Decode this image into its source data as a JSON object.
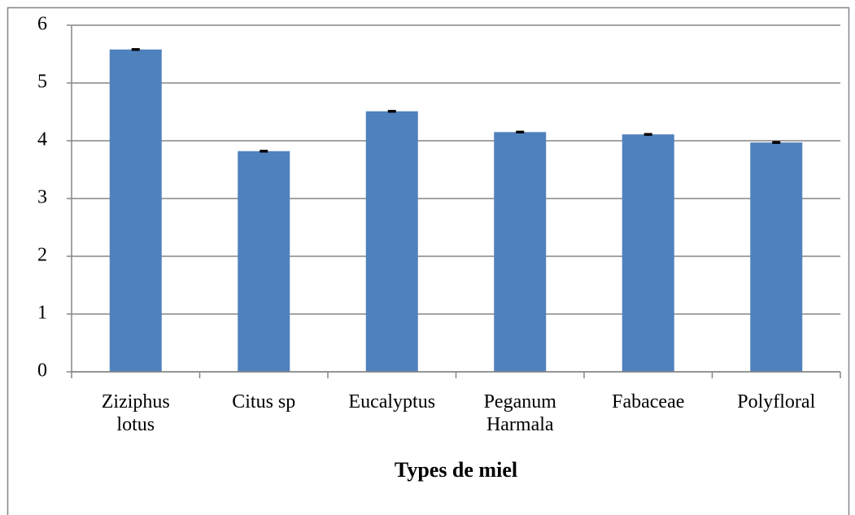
{
  "chart_data": {
    "type": "bar",
    "x_label": "Types de miel",
    "categories": [
      "Ziziphus lotus",
      "Citus sp",
      "Eucalyptus",
      "Peganum Harmala",
      "Fabaceae",
      "Polyfloral"
    ],
    "values": [
      5.58,
      3.82,
      4.51,
      4.15,
      4.11,
      3.97
    ],
    "errors": [
      0.01,
      0.01,
      0.01,
      0.01,
      0.01,
      0.01
    ],
    "color": "#4f81bd",
    "ylim": [
      0,
      6
    ],
    "yticks": [
      0,
      1,
      2,
      3,
      4,
      5,
      6
    ],
    "grid": true
  }
}
